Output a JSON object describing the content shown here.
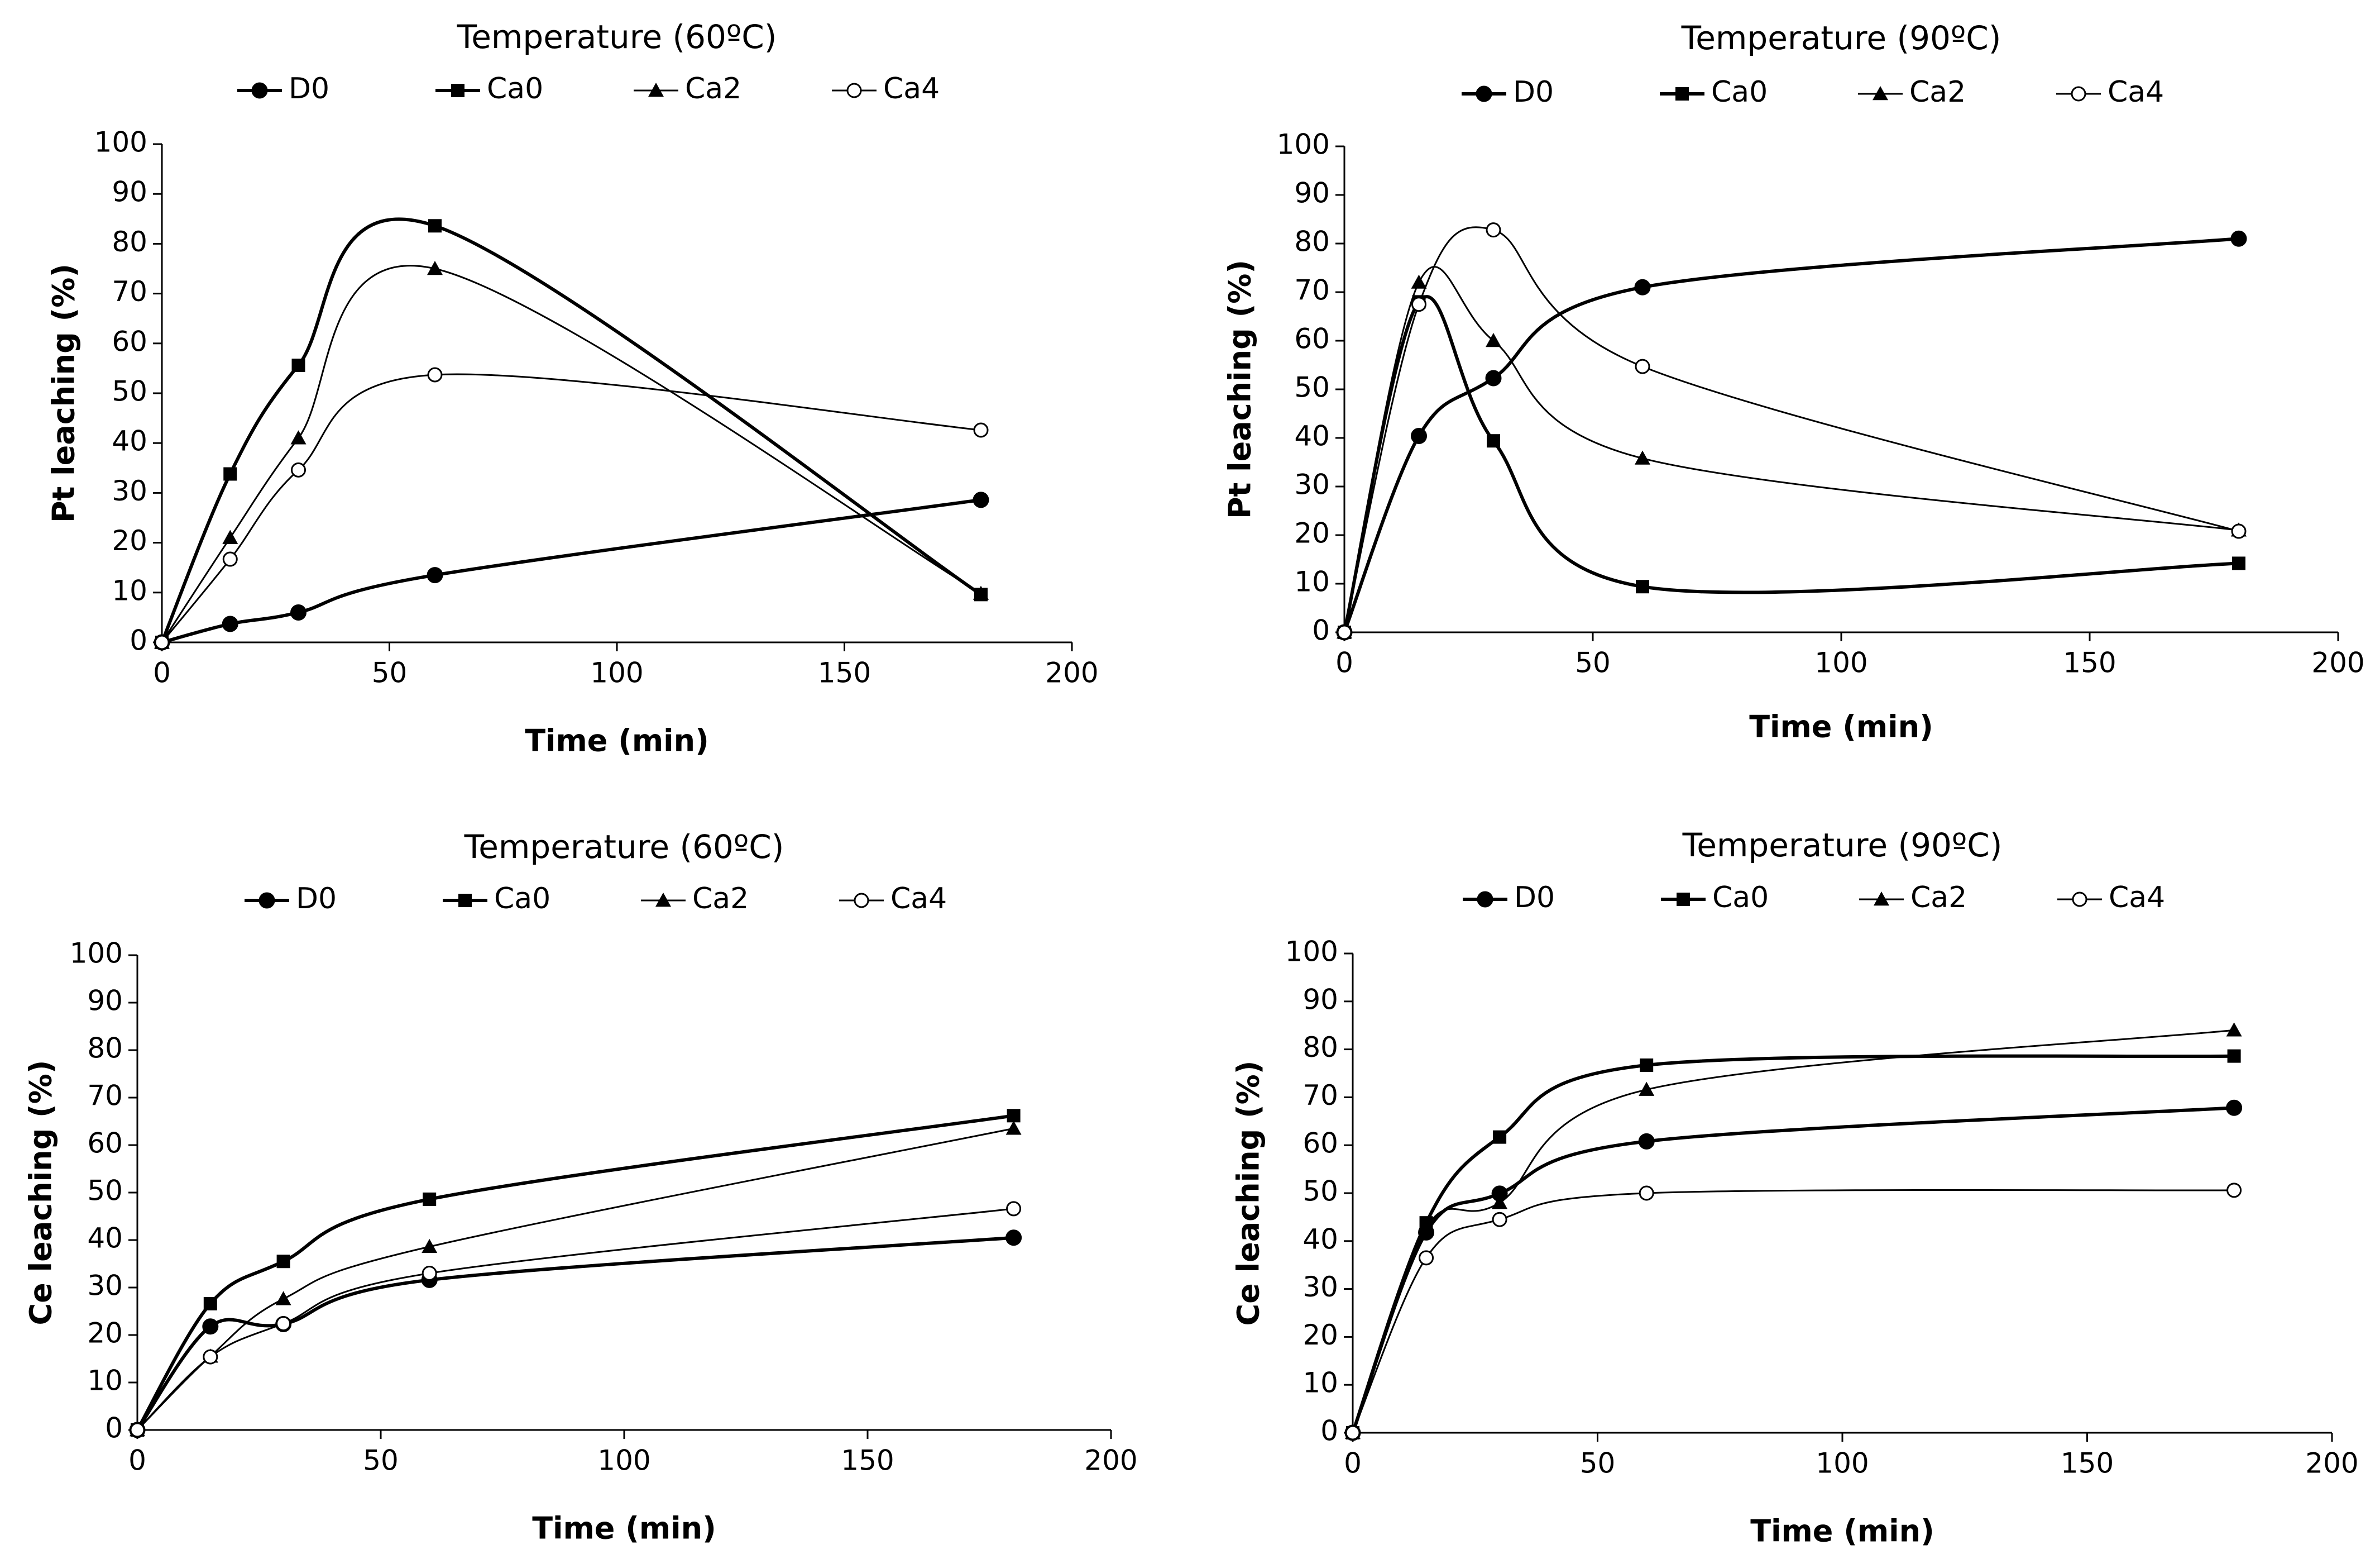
{
  "chart_data": [
    {
      "type": "line",
      "title": "Temperature (60ºC)",
      "xlabel": "Time (min)",
      "ylabel": "Pt leaching (%)",
      "xlim": [
        0,
        200
      ],
      "ylim": [
        0,
        100
      ],
      "xticks": [
        0,
        50,
        100,
        150,
        200
      ],
      "yticks": [
        0,
        10,
        20,
        30,
        40,
        50,
        60,
        70,
        80,
        90,
        100
      ],
      "x": [
        0,
        15,
        30,
        60,
        180
      ],
      "legend": "top",
      "series": [
        {
          "name": "D0",
          "marker": "circle-filled",
          "weight": "heavy",
          "values": [
            0,
            3.7,
            6,
            13.5,
            28.6
          ]
        },
        {
          "name": "Ca0",
          "marker": "square-filled",
          "weight": "heavy",
          "values": [
            0,
            33.8,
            55.6,
            83.6,
            9.6
          ]
        },
        {
          "name": "Ca2",
          "marker": "triangle-filled",
          "weight": "light",
          "values": [
            0,
            21,
            41,
            75,
            9.8
          ]
        },
        {
          "name": "Ca4",
          "marker": "circle-open",
          "weight": "light",
          "values": [
            0,
            16.7,
            34.6,
            53.7,
            42.6
          ]
        }
      ]
    },
    {
      "type": "line",
      "title": "Temperature (90ºC)",
      "xlabel": "Time (min)",
      "ylabel": "Pt  leaching (%)",
      "xlim": [
        0,
        200
      ],
      "ylim": [
        0,
        100
      ],
      "xticks": [
        0,
        50,
        100,
        150,
        200
      ],
      "yticks": [
        0,
        10,
        20,
        30,
        40,
        50,
        60,
        70,
        80,
        90,
        100
      ],
      "x": [
        0,
        15,
        30,
        60,
        180
      ],
      "legend": "top",
      "series": [
        {
          "name": "D0",
          "marker": "circle-filled",
          "weight": "heavy",
          "values": [
            0,
            40.4,
            52.3,
            71,
            81
          ]
        },
        {
          "name": "Ca0",
          "marker": "square-filled",
          "weight": "heavy",
          "values": [
            0,
            68,
            39.4,
            9.4,
            14.2
          ]
        },
        {
          "name": "Ca2",
          "marker": "triangle-filled",
          "weight": "light",
          "values": [
            0,
            72,
            60,
            35.8,
            21
          ]
        },
        {
          "name": "Ca4",
          "marker": "circle-open",
          "weight": "light",
          "values": [
            0,
            67.5,
            82.8,
            54.7,
            20.8
          ]
        }
      ]
    },
    {
      "type": "line",
      "title": "Temperature (60ºC)",
      "xlabel": "Time (min)",
      "ylabel": "Ce leaching (%)",
      "xlim": [
        0,
        200
      ],
      "ylim": [
        0,
        100
      ],
      "xticks": [
        0,
        50,
        100,
        150,
        200
      ],
      "yticks": [
        0,
        10,
        20,
        30,
        40,
        50,
        60,
        70,
        80,
        90,
        100
      ],
      "x": [
        0,
        15,
        30,
        60,
        180
      ],
      "legend": "top",
      "series": [
        {
          "name": "D0",
          "marker": "circle-filled",
          "weight": "heavy",
          "values": [
            0,
            21.8,
            22.3,
            31.6,
            40.5
          ]
        },
        {
          "name": "Ca0",
          "marker": "square-filled",
          "weight": "heavy",
          "values": [
            0,
            26.6,
            35.5,
            48.6,
            66.2
          ]
        },
        {
          "name": "Ca2",
          "marker": "triangle-filled",
          "weight": "light",
          "values": [
            0,
            15.5,
            27.6,
            38.6,
            63.5
          ]
        },
        {
          "name": "Ca4",
          "marker": "circle-open",
          "weight": "light",
          "values": [
            0,
            15.4,
            22.4,
            33,
            46.6
          ]
        }
      ]
    },
    {
      "type": "line",
      "title": "Temperature (90ºC)",
      "xlabel": "Time (min)",
      "ylabel": "Ce leaching (%)",
      "xlim": [
        0,
        200
      ],
      "ylim": [
        0,
        100
      ],
      "xticks": [
        0,
        50,
        100,
        150,
        200
      ],
      "yticks": [
        0,
        10,
        20,
        30,
        40,
        50,
        60,
        70,
        80,
        90,
        100
      ],
      "x": [
        0,
        15,
        30,
        60,
        180
      ],
      "legend": "top",
      "series": [
        {
          "name": "D0",
          "marker": "circle-filled",
          "weight": "heavy",
          "values": [
            0,
            41.8,
            49.9,
            60.8,
            67.8
          ]
        },
        {
          "name": "Ca0",
          "marker": "square-filled",
          "weight": "heavy",
          "values": [
            0,
            43.8,
            61.7,
            76.7,
            78.6
          ]
        },
        {
          "name": "Ca2",
          "marker": "triangle-filled",
          "weight": "light",
          "values": [
            0,
            42.8,
            48,
            71.6,
            84
          ]
        },
        {
          "name": "Ca4",
          "marker": "circle-open",
          "weight": "light",
          "values": [
            0,
            36.5,
            44.5,
            50,
            50.6
          ]
        }
      ]
    }
  ]
}
